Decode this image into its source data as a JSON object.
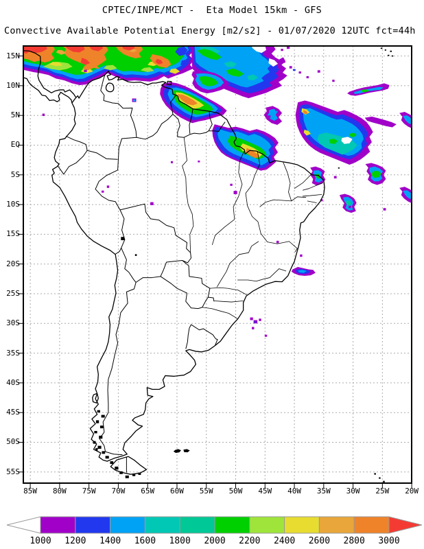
{
  "header": {
    "line1": "CPTEC/INPE/MCT -  Eta Model 15km - GFS",
    "line2": "Convective Available Potential Energy [m2/s2] - 01/07/2020 12UTC fct=44h"
  },
  "map": {
    "lat_ticks": [
      "15N",
      "10N",
      "5N",
      "EQ",
      "5S",
      "10S",
      "15S",
      "20S",
      "25S",
      "30S",
      "35S",
      "40S",
      "45S",
      "50S",
      "55S"
    ],
    "lon_ticks": [
      "85W",
      "80W",
      "75W",
      "70W",
      "65W",
      "60W",
      "55W",
      "50W",
      "45W",
      "40W",
      "35W",
      "30W",
      "25W",
      "20W"
    ],
    "grid_color": "#aaaaaa",
    "outline_color": "#000000",
    "background": "#ffffff"
  },
  "colorbar": {
    "tick_labels": [
      "1000",
      "1200",
      "1400",
      "1600",
      "1800",
      "2000",
      "2200",
      "2400",
      "2600",
      "2800",
      "3000"
    ],
    "colors": [
      "#a000c8",
      "#2238ef",
      "#00a2f5",
      "#00c8b4",
      "#00c896",
      "#00cf00",
      "#9ee43a",
      "#e8dc30",
      "#e9a63a",
      "#ef8329",
      "#f43b33"
    ],
    "under_arrow_color": "#ffffff",
    "outline_color": "#999999"
  },
  "chart_data": {
    "type": "heatmap",
    "title": "CPTEC/INPE/MCT -  Eta Model 15km - GFS",
    "subtitle": "Convective Available Potential Energy [m2/s2] - 01/07/2020 12UTC fct=44h",
    "variable": "Convective Available Potential Energy",
    "units": "m2/s2",
    "model": "Eta Model 15km - GFS",
    "source": "CPTEC/INPE/MCT",
    "valid": "01/07/2020 12UTC fct=44h",
    "x_ticks": [
      "85W",
      "80W",
      "75W",
      "70W",
      "65W",
      "60W",
      "55W",
      "50W",
      "45W",
      "40W",
      "35W",
      "30W",
      "25W",
      "20W"
    ],
    "y_ticks": [
      "15N",
      "10N",
      "5N",
      "EQ",
      "5S",
      "10S",
      "15S",
      "20S",
      "25S",
      "30S",
      "35S",
      "40S",
      "45S",
      "50S",
      "55S"
    ],
    "color_scale": {
      "levels": [
        1000,
        1200,
        1400,
        1600,
        1800,
        2000,
        2200,
        2400,
        2600,
        2800,
        3000
      ],
      "colors": [
        "#a000c8",
        "#2238ef",
        "#00a2f5",
        "#00c8b4",
        "#00c896",
        "#00cf00",
        "#9ee43a",
        "#e8dc30",
        "#e9a63a",
        "#ef8329",
        "#f43b33"
      ]
    },
    "grid": true,
    "legend_position": "bottom"
  }
}
